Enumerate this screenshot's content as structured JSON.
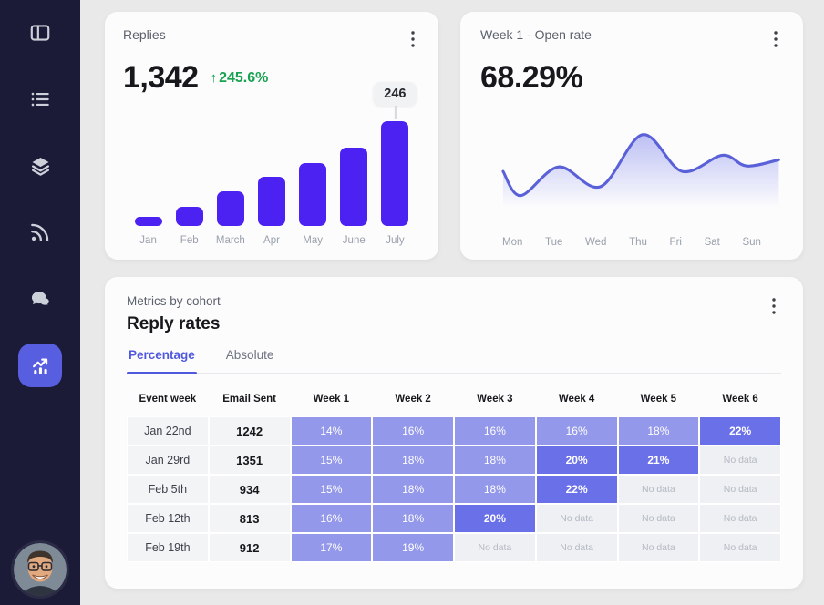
{
  "sidebar": {
    "items": [
      {
        "id": "panels",
        "icon": "panels-icon",
        "active": false
      },
      {
        "id": "list",
        "icon": "list-icon",
        "active": false
      },
      {
        "id": "layers",
        "icon": "layers-icon",
        "active": false
      },
      {
        "id": "feed",
        "icon": "rss-icon",
        "active": false
      },
      {
        "id": "chat",
        "icon": "chat-icon",
        "active": false
      },
      {
        "id": "analytics",
        "icon": "analytics-icon",
        "active": true
      }
    ],
    "avatar": "user-avatar"
  },
  "cards": {
    "replies": {
      "title": "Replies",
      "value": "1,342",
      "change": "245.6%",
      "change_direction": "up"
    },
    "open_rate": {
      "title": "Week 1 - Open rate",
      "value": "68.29%"
    },
    "cohort": {
      "subtitle": "Metrics by cohort",
      "title": "Reply rates",
      "tabs": [
        {
          "label": "Percentage",
          "active": true
        },
        {
          "label": "Absolute",
          "active": false
        }
      ]
    }
  },
  "colors": {
    "bar": "#4c22f2",
    "line": "#5a61d8",
    "green": "#17a24f",
    "heatmap_light": "#9398ea",
    "heatmap_dark": "#6a70e8",
    "sidebar_bg": "#1b1b38",
    "active_nav": "#585ee0",
    "accent_tab": "#5059dd"
  },
  "chart_data": [
    {
      "type": "bar",
      "title": "Replies",
      "headline_value": 1342,
      "change_pct": 245.6,
      "categories": [
        "Jan",
        "Feb",
        "March",
        "Apr",
        "May",
        "June",
        "July"
      ],
      "values": [
        21,
        45,
        81,
        115,
        148,
        184,
        246
      ],
      "tooltip_label": "246",
      "tooltip_category": "July",
      "ylim": [
        0,
        246
      ],
      "grid": false,
      "legend": false
    },
    {
      "type": "area",
      "title": "Week 1 - Open rate",
      "headline_value": 68.29,
      "categories": [
        "Mon",
        "Tue",
        "Wed",
        "Thu",
        "Fri",
        "Sat",
        "Sun"
      ],
      "relative_values": [
        57,
        30,
        62,
        40,
        98,
        57,
        75,
        63,
        70
      ],
      "points": [
        {
          "x": 27,
          "y": 53
        },
        {
          "x": 48,
          "y": 80
        },
        {
          "x": 93,
          "y": 48
        },
        {
          "x": 143,
          "y": 70
        },
        {
          "x": 193,
          "y": 12
        },
        {
          "x": 240,
          "y": 53
        },
        {
          "x": 288,
          "y": 35
        },
        {
          "x": 317,
          "y": 47
        },
        {
          "x": 355,
          "y": 40
        }
      ],
      "grid": false,
      "legend": false
    },
    {
      "type": "heatmap",
      "title": "Reply rates",
      "columns": [
        "Event week",
        "Email Sent",
        "Week 1",
        "Week 2",
        "Week 3",
        "Week 4",
        "Week 5",
        "Week 6"
      ],
      "rows": [
        {
          "label": "Jan 22nd",
          "email_sent": 1242,
          "values": [
            14,
            16,
            16,
            16,
            18,
            22
          ]
        },
        {
          "label": "Jan 29rd",
          "email_sent": 1351,
          "values": [
            15,
            18,
            18,
            20,
            21,
            null
          ]
        },
        {
          "label": "Feb 5th",
          "email_sent": 934,
          "values": [
            15,
            18,
            18,
            22,
            null,
            null
          ]
        },
        {
          "label": "Feb 12th",
          "email_sent": 813,
          "values": [
            16,
            18,
            20,
            null,
            null,
            null
          ]
        },
        {
          "label": "Feb 19th",
          "email_sent": 912,
          "values": [
            17,
            19,
            null,
            null,
            null,
            null
          ]
        }
      ],
      "value_suffix": "%",
      "no_data_label": "No data",
      "emphasis_threshold": 20
    }
  ]
}
